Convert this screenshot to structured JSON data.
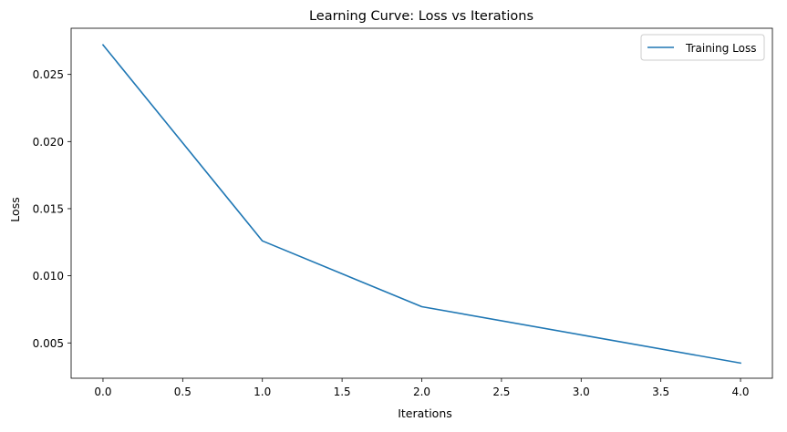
{
  "chart_data": {
    "type": "line",
    "title": "Learning Curve: Loss vs Iterations",
    "xlabel": "Iterations",
    "ylabel": "Loss",
    "xlim": [
      -0.2,
      4.2
    ],
    "ylim": [
      0.00237,
      0.02844
    ],
    "x_ticks": [
      0.0,
      0.5,
      1.0,
      1.5,
      2.0,
      2.5,
      3.0,
      3.5,
      4.0
    ],
    "x_tick_labels": [
      "0.0",
      "0.5",
      "1.0",
      "1.5",
      "2.0",
      "2.5",
      "3.0",
      "3.5",
      "4.0"
    ],
    "y_ticks": [
      0.005,
      0.01,
      0.015,
      0.02,
      0.025
    ],
    "y_tick_labels": [
      "0.005",
      "0.010",
      "0.015",
      "0.020",
      "0.025"
    ],
    "grid": false,
    "legend": "top-right",
    "series": [
      {
        "name": "Training Loss",
        "color": "#1f77b4",
        "x": [
          0,
          1,
          2,
          3,
          4
        ],
        "y": [
          0.0272,
          0.0126,
          0.0077,
          0.0056,
          0.0035
        ]
      }
    ]
  }
}
